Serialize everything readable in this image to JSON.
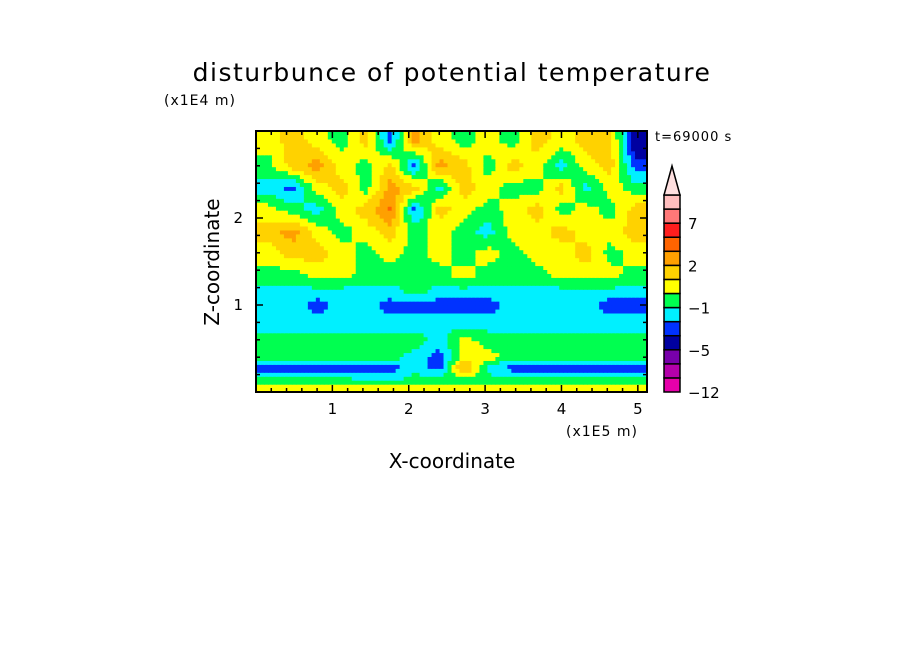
{
  "chart_data": {
    "type": "heatmap",
    "title": "disturbunce of potential temperature",
    "xlabel": "X-coordinate",
    "ylabel": "Z-coordinate",
    "x_unit": "(x1E5 m)",
    "y_unit": "(x1E4 m)",
    "annotation": "t=69000 s",
    "xlim": [
      0,
      5.12
    ],
    "ylim": [
      0,
      3.0
    ],
    "xticks": [
      1,
      2,
      3,
      4,
      5
    ],
    "yticks": [
      1,
      2
    ],
    "colorbar": {
      "levels": [
        -12,
        -10,
        -8,
        -5,
        -3,
        -2,
        -1,
        0,
        1,
        2,
        3,
        5,
        7,
        9,
        11
      ],
      "labels": [
        "-12",
        "-5",
        "-1",
        "2",
        "7"
      ],
      "label_values": [
        -12,
        -5,
        -1,
        2,
        7
      ],
      "colors": [
        "#e600aa",
        "#b400aa",
        "#7800aa",
        "#0000a0",
        "#0032ff",
        "#00f0ff",
        "#00ff50",
        "#ffff00",
        "#ffd200",
        "#ffa000",
        "#ff6400",
        "#ff1e1e",
        "#ff7878",
        "#ffbebe"
      ],
      "extend_color": "#ffe0e0"
    },
    "grid_x": [
      0.16,
      0.48,
      0.8,
      1.12,
      1.44,
      1.76,
      2.08,
      2.4,
      2.72,
      3.04,
      3.36,
      3.68,
      4.0,
      4.32,
      4.64,
      4.96
    ],
    "grid_z": [
      2.9,
      2.6,
      2.35,
      2.1,
      1.85,
      1.6,
      1.35,
      1.15,
      1.0,
      0.8,
      0.6,
      0.4,
      0.28,
      0.15,
      0.05
    ],
    "values": [
      [
        0.5,
        1.5,
        0.5,
        -0.5,
        1.5,
        -2.5,
        2.5,
        0.5,
        -0.5,
        0.5,
        -0.5,
        1.5,
        0.5,
        1.5,
        1.5,
        -4
      ],
      [
        -0.5,
        1.5,
        2.5,
        0.5,
        -0.5,
        1.5,
        -2.5,
        2.5,
        1.5,
        -0.5,
        1.5,
        0.5,
        -1.5,
        0.5,
        1.5,
        -2.5
      ],
      [
        -1.5,
        -2.5,
        0.5,
        1.5,
        -0.5,
        2.5,
        1.5,
        -1.5,
        1.5,
        0.5,
        -0.5,
        -0.5,
        1.5,
        -1.5,
        0.5,
        -0.5
      ],
      [
        0.5,
        -0.5,
        -1.5,
        0.5,
        1.5,
        3.2,
        -2.5,
        1.5,
        0.5,
        -0.5,
        0.5,
        1.5,
        -0.5,
        0.5,
        -0.5,
        1.5
      ],
      [
        1.5,
        2.5,
        0.5,
        -0.5,
        0.5,
        1.5,
        -0.5,
        0.5,
        -0.5,
        -1.5,
        0.5,
        0.5,
        1.5,
        0.5,
        0.5,
        1.5
      ],
      [
        0.5,
        1.5,
        1.5,
        0.5,
        -0.5,
        0.5,
        -0.5,
        0.5,
        -0.5,
        0.5,
        -0.5,
        0.5,
        0.5,
        1.5,
        -0.5,
        0.5
      ],
      [
        -0.5,
        -0.5,
        0.5,
        0.5,
        -0.5,
        -0.5,
        -0.5,
        -0.5,
        0.5,
        -0.5,
        -0.5,
        -0.5,
        0.5,
        0.5,
        0.5,
        -0.5
      ],
      [
        -1.5,
        -1.5,
        -1.5,
        -1.5,
        -1.5,
        -1.5,
        -0.5,
        -1.5,
        -1.5,
        -1.5,
        -1.5,
        -1.5,
        -1.5,
        -1.5,
        -1.5,
        -1.5
      ],
      [
        -1.5,
        -1.5,
        -2.5,
        -1.5,
        -1.5,
        -2.5,
        -2.5,
        -2.5,
        -2.5,
        -2.5,
        -1.5,
        -1.5,
        -1.5,
        -1.5,
        -2.5,
        -2.5
      ],
      [
        -1.5,
        -1.5,
        -1.5,
        -1.5,
        -1.5,
        -1.5,
        -1.5,
        -1.5,
        -1.5,
        -1.5,
        -1.5,
        -1.5,
        -1.5,
        -1.5,
        -1.5,
        -1.5
      ],
      [
        -0.5,
        -0.5,
        -0.5,
        -0.5,
        -0.5,
        -0.5,
        -0.5,
        -1.5,
        0.5,
        -0.5,
        -0.5,
        -0.5,
        -0.5,
        -0.5,
        -0.5,
        -0.5
      ],
      [
        -0.5,
        -0.5,
        -0.5,
        -0.5,
        -0.5,
        -0.5,
        -1.5,
        -2.5,
        0.5,
        0.5,
        -0.5,
        -0.5,
        -0.5,
        -0.5,
        -0.5,
        -0.5
      ],
      [
        -2.5,
        -2.5,
        -2.5,
        -2.5,
        -2.5,
        -2.5,
        -1.5,
        -2.5,
        2.5,
        -1.5,
        -2.5,
        -2.5,
        -2.5,
        -2.5,
        -2.5,
        -2.5
      ],
      [
        -0.5,
        -0.5,
        -0.5,
        -0.5,
        -1.5,
        -1.5,
        -0.5,
        -0.5,
        -0.5,
        -0.5,
        -0.5,
        -0.5,
        -0.5,
        -0.5,
        -0.5,
        -0.5
      ],
      [
        0.5,
        0.5,
        0.5,
        0.5,
        0.5,
        0.5,
        0.5,
        0.5,
        0.5,
        0.5,
        0.5,
        0.5,
        0.5,
        0.5,
        0.5,
        0.5
      ]
    ]
  }
}
